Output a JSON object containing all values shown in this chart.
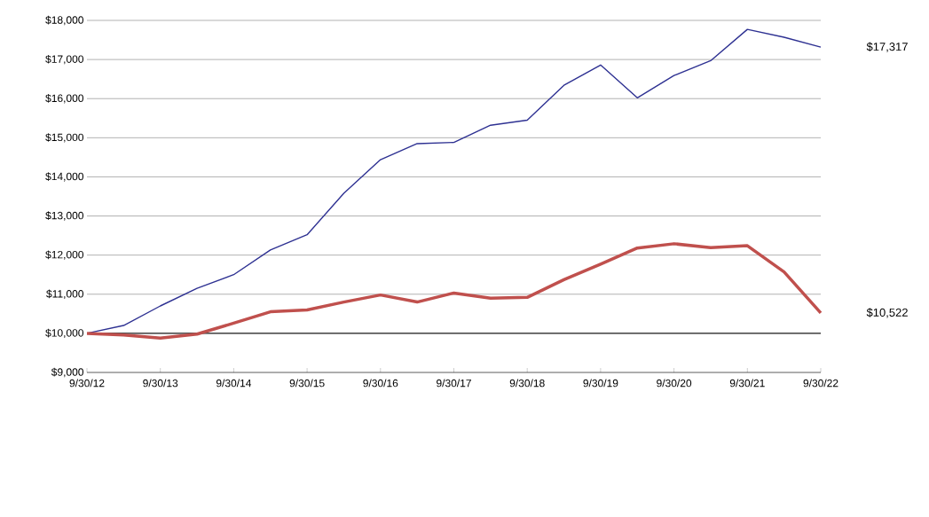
{
  "chart_data": {
    "type": "line",
    "categories": [
      "9/30/12",
      null,
      "9/30/13",
      null,
      "9/30/14",
      null,
      "9/30/15",
      null,
      "9/30/16",
      null,
      "9/30/17",
      null,
      "9/30/18",
      null,
      "9/30/19",
      null,
      "9/30/20",
      null,
      "9/30/21",
      null,
      "9/30/22"
    ],
    "series": [
      {
        "color": "#2e3192",
        "values": [
          10000,
          10200,
          10700,
          11150,
          11500,
          12130,
          12520,
          13580,
          14440,
          14850,
          14880,
          15320,
          15450,
          16340,
          16860,
          16020,
          16590,
          16970,
          17770,
          17570,
          17317
        ]
      },
      {
        "color": "#c0504d",
        "values": [
          10000,
          9960,
          9880,
          9980,
          10260,
          10550,
          10600,
          10800,
          10980,
          10800,
          11030,
          10900,
          10920,
          11370,
          11770,
          12180,
          12290,
          12190,
          12240,
          11570,
          10522
        ]
      }
    ],
    "ylim": [
      9000,
      18000
    ],
    "yticks": [
      {
        "value": 9000,
        "label": "$9,000"
      },
      {
        "value": 10000,
        "label": "$10,000"
      },
      {
        "value": 11000,
        "label": "$11,000"
      },
      {
        "value": 12000,
        "label": "$12,000"
      },
      {
        "value": 13000,
        "label": "$13,000"
      },
      {
        "value": 14000,
        "label": "$14,000"
      },
      {
        "value": 15000,
        "label": "$15,000"
      },
      {
        "value": 16000,
        "label": "$16,000"
      },
      {
        "value": 17000,
        "label": "$17,000"
      },
      {
        "value": 18000,
        "label": "$18,000"
      }
    ],
    "ref_lines": [
      {
        "axis": "y",
        "value": 10000,
        "color": "#000000"
      }
    ],
    "annotations": [
      "$17,317",
      "$10,522"
    ],
    "grid": "y",
    "marker": "none",
    "line_style": "solid"
  }
}
